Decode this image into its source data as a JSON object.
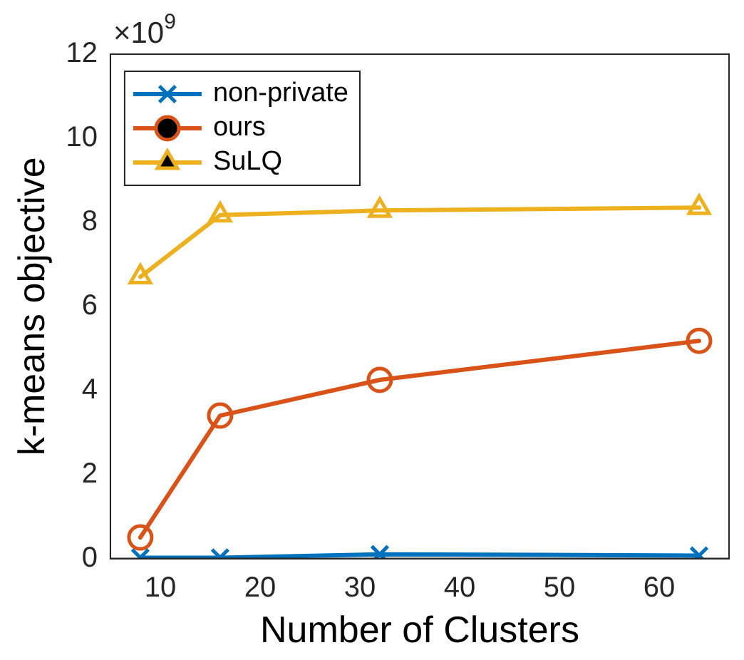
{
  "chart_data": {
    "type": "line",
    "xlabel": "Number of Clusters",
    "ylabel": "k-means objective",
    "x": [
      8,
      16,
      32,
      64
    ],
    "series": [
      {
        "name": "non-private",
        "color": "#0072bd",
        "marker": "cross",
        "values": [
          0.02,
          0.02,
          0.1,
          0.07
        ]
      },
      {
        "name": "ours",
        "color": "#d95319",
        "marker": "circle",
        "values": [
          0.5,
          3.4,
          4.25,
          5.18
        ]
      },
      {
        "name": "SuLQ",
        "color": "#edb120",
        "marker": "triangle",
        "values": [
          6.7,
          8.17,
          8.28,
          8.35
        ]
      }
    ],
    "xlim": [
      5,
      67
    ],
    "xticks": [
      10,
      20,
      30,
      40,
      50,
      60
    ],
    "ylim": [
      0,
      12
    ],
    "yticks": [
      0,
      2,
      4,
      6,
      8,
      10,
      12
    ],
    "annotations": [
      "×10$^{9}$"
    ],
    "grid": false,
    "legend": "top left",
    "line_style": "solid"
  }
}
